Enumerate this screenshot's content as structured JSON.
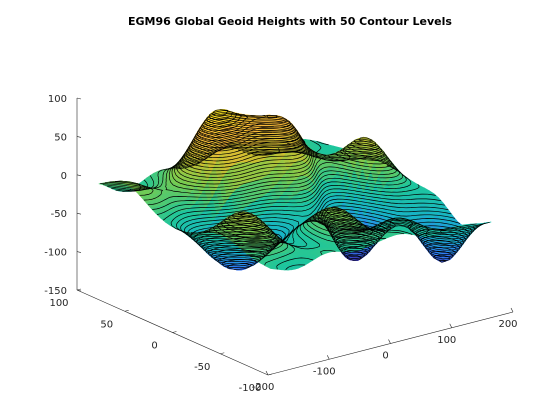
{
  "chart_data": {
    "type": "surface_contour3",
    "title": "EGM96 Global Geoid Heights with 50 Contour Levels",
    "x_axis": {
      "ticks": [
        -200,
        -100,
        0,
        100,
        200
      ],
      "labels": [
        "-200",
        "-100",
        "0",
        "100",
        "200"
      ],
      "lim": [
        -200,
        200
      ]
    },
    "y_axis": {
      "ticks": [
        -100,
        -50,
        0,
        50,
        100
      ],
      "labels": [
        "-100",
        "-50",
        "0",
        "50",
        "100"
      ],
      "lim": [
        -100,
        100
      ]
    },
    "z_axis": {
      "ticks": [
        -150,
        -100,
        -50,
        0,
        50,
        100
      ],
      "labels": [
        "-150",
        "-100",
        "-50",
        "0",
        "50",
        "100"
      ],
      "lim": [
        -150,
        100
      ]
    },
    "contour_levels": 50,
    "data_range": {
      "x": [
        -180,
        180
      ],
      "y": [
        -90,
        90
      ],
      "z": [
        -107,
        85
      ]
    },
    "colormap": [
      "#3e26a8",
      "#2f7df7",
      "#17b4c8",
      "#1fc69b",
      "#79cb4f",
      "#c8c030",
      "#f9b93a",
      "#f8e51f"
    ]
  }
}
